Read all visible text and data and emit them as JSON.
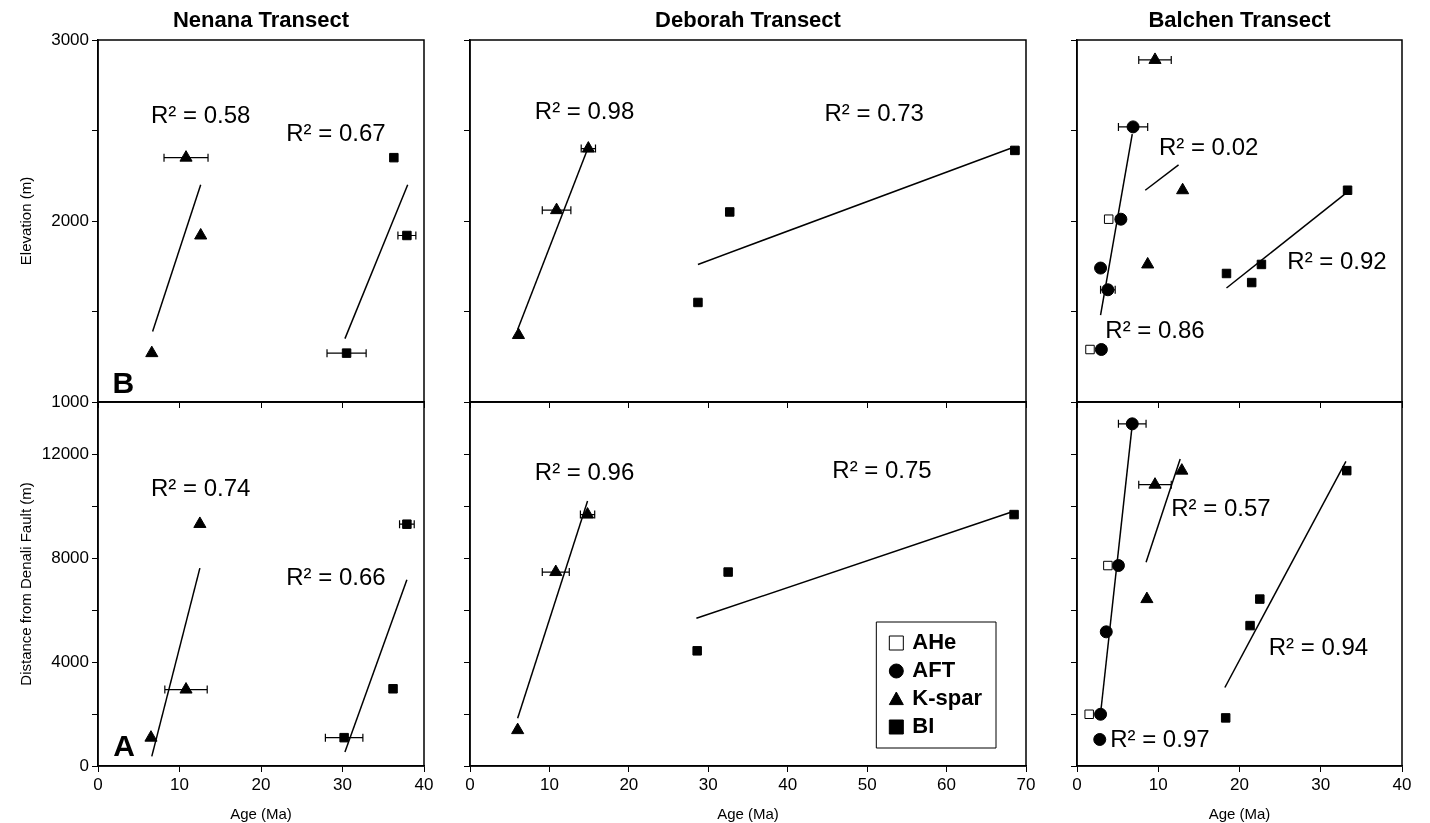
{
  "chart_data": [
    {
      "type": "scatter",
      "title": "Nenana Transect",
      "ylabel": "Elevation (m)",
      "xlim": [
        0,
        40
      ],
      "ylim": [
        1000,
        3000
      ],
      "xticks": [
        0,
        10,
        20,
        30,
        40
      ],
      "yticks": [
        1000,
        {
          "value": 1500,
          "label": null
        },
        2000,
        {
          "value": 2500,
          "label": null
        },
        3000
      ],
      "tick_labels": "y",
      "series": [
        {
          "type": "scatter",
          "marker": "triangle",
          "color": "#000000",
          "x": [
            6.6,
            10.8,
            12.6
          ],
          "values": [
            1270,
            2350,
            1920
          ],
          "xerrors": [
            null,
            2.7,
            null
          ]
        },
        {
          "type": "line",
          "color": "#000000",
          "x": [
            6.7,
            12.6
          ],
          "values": [
            1390,
            2200
          ]
        },
        {
          "type": "scatter",
          "marker": "square",
          "color": "#000000",
          "x": [
            30.5,
            36.3,
            37.9
          ],
          "values": [
            1270,
            2350,
            1920
          ],
          "xerrors": [
            2.4,
            null,
            1.1
          ]
        },
        {
          "type": "line",
          "color": "#000000",
          "x": [
            30.3,
            38.0
          ],
          "values": [
            1350,
            2200
          ]
        }
      ],
      "annotations": [
        "R² = 0.58",
        "R² = 0.67",
        "B"
      ]
    },
    {
      "type": "scatter",
      "title": "Deborah Transect",
      "xlim": [
        0,
        70
      ],
      "ylim": [
        1000,
        3000
      ],
      "xticks": [
        0,
        10,
        20,
        30,
        40,
        50,
        60,
        70
      ],
      "yticks": [
        1000,
        {
          "value": 1500,
          "label": null
        },
        2000,
        {
          "value": 2500,
          "label": null
        },
        3000
      ],
      "tick_labels": false,
      "series": [
        {
          "type": "scatter",
          "marker": "triangle",
          "color": "#000000",
          "x": [
            6.1,
            10.9,
            14.9
          ],
          "values": [
            1370,
            2060,
            2400
          ],
          "xerrors": [
            null,
            1.8,
            0.9
          ]
        },
        {
          "type": "line",
          "color": "#000000",
          "x": [
            6.0,
            15.0
          ],
          "values": [
            1400,
            2420
          ]
        },
        {
          "type": "scatter",
          "marker": "square",
          "color": "#000000",
          "x": [
            28.7,
            32.7,
            68.6
          ],
          "values": [
            1550,
            2050,
            2390
          ],
          "xerrors": [
            null,
            null,
            0.5
          ]
        },
        {
          "type": "line",
          "color": "#000000",
          "x": [
            28.7,
            68.6
          ],
          "values": [
            1760,
            2410
          ]
        }
      ],
      "annotations": [
        "R² = 0.98",
        "R² = 0.73"
      ]
    },
    {
      "type": "scatter",
      "title": "Balchen Transect",
      "xlim": [
        0,
        40
      ],
      "ylim": [
        1000,
        3000
      ],
      "xticks": [
        0,
        10,
        20,
        30,
        40
      ],
      "yticks": [
        1000,
        {
          "value": 1500,
          "label": null
        },
        2000,
        {
          "value": 2500,
          "label": null
        },
        3000
      ],
      "tick_labels": false,
      "series": [
        {
          "type": "scatter",
          "marker": "square",
          "color": "#ffffff",
          "x": [
            3.9,
            1.6
          ],
          "values": [
            2010,
            1290
          ]
        },
        {
          "type": "scatter",
          "marker": "circle",
          "color": "#000000",
          "x": [
            6.9,
            5.4,
            2.9,
            3.8,
            3.0
          ],
          "values": [
            2520,
            2010,
            1740,
            1620,
            1290
          ],
          "xerrors": [
            1.8,
            null,
            null,
            0.9,
            null
          ]
        },
        {
          "type": "line",
          "color": "#000000",
          "x": [
            2.9,
            6.8
          ],
          "values": [
            1480,
            2480
          ]
        },
        {
          "type": "scatter",
          "marker": "triangle",
          "color": "#000000",
          "x": [
            9.6,
            13.0,
            8.7
          ],
          "values": [
            2890,
            2170,
            1760
          ],
          "xerrors": [
            2.0,
            null,
            null
          ]
        },
        {
          "type": "line",
          "color": "#000000",
          "x": [
            8.4,
            12.5
          ],
          "values": [
            2170,
            2310
          ]
        },
        {
          "type": "scatter",
          "marker": "square",
          "color": "#000000",
          "x": [
            18.4,
            21.5,
            22.7,
            33.3
          ],
          "values": [
            1710,
            1660,
            1760,
            2170
          ]
        },
        {
          "type": "line",
          "color": "#000000",
          "x": [
            18.4,
            33.0
          ],
          "values": [
            1630,
            2150
          ]
        }
      ],
      "annotations": [
        "R² = 0.02",
        "R² = 0.92",
        "R² = 0.86"
      ]
    },
    {
      "type": "scatter",
      "xlabel": "Age (Ma)",
      "ylabel": "Distance from Denali Fault (m)",
      "xlim": [
        0,
        40
      ],
      "ylim": [
        0,
        14000
      ],
      "xticks": [
        0,
        10,
        20,
        30,
        40
      ],
      "yticks": [
        0,
        {
          "value": 2000,
          "label": null
        },
        4000,
        {
          "value": 6000,
          "label": null
        },
        8000,
        {
          "value": 10000,
          "label": null
        },
        12000
      ],
      "series": [
        {
          "type": "scatter",
          "marker": "triangle",
          "color": "#000000",
          "x": [
            6.5,
            10.8,
            12.5
          ],
          "values": [
            1090,
            2940,
            9310
          ],
          "xerrors": [
            null,
            2.6,
            null
          ]
        },
        {
          "type": "line",
          "color": "#000000",
          "x": [
            6.6,
            12.5
          ],
          "values": [
            370,
            7610
          ]
        },
        {
          "type": "scatter",
          "marker": "square",
          "color": "#000000",
          "x": [
            30.2,
            36.2,
            37.9
          ],
          "values": [
            1090,
            2970,
            9300
          ],
          "xerrors": [
            2.3,
            null,
            0.9
          ]
        },
        {
          "type": "line",
          "color": "#000000",
          "x": [
            30.3,
            37.9
          ],
          "values": [
            540,
            7160
          ]
        }
      ],
      "annotations": [
        "R² = 0.74",
        "R² = 0.66",
        "A"
      ]
    },
    {
      "type": "scatter",
      "xlabel": "Age (Ma)",
      "xlim": [
        0,
        70
      ],
      "ylim": [
        0,
        14000
      ],
      "xticks": [
        0,
        10,
        20,
        30,
        40,
        50,
        60,
        70
      ],
      "yticks": [
        0,
        {
          "value": 2000,
          "label": null
        },
        {
          "value": 4000,
          "label": null
        },
        {
          "value": 6000,
          "label": null
        },
        {
          "value": 8000,
          "label": null
        },
        {
          "value": 10000,
          "label": null
        },
        {
          "value": 12000,
          "label": null
        }
      ],
      "tick_labels": "x",
      "legend": "bottom right",
      "series": [
        {
          "name": "AHe",
          "type": "scatter",
          "marker": "square",
          "color": "#ffffff"
        },
        {
          "name": "AFT",
          "type": "scatter",
          "marker": "circle",
          "color": "#000000"
        },
        {
          "name": "K-spar",
          "type": "scatter",
          "marker": "triangle",
          "color": "#000000",
          "x": [
            6.0,
            10.8,
            14.8
          ],
          "values": [
            1380,
            7460,
            9670
          ],
          "xerrors": [
            null,
            1.7,
            0.9
          ]
        },
        {
          "type": "line",
          "color": "#000000",
          "x": [
            6.0,
            14.8
          ],
          "values": [
            1840,
            10190
          ]
        },
        {
          "name": "BI",
          "type": "scatter",
          "marker": "square",
          "color": "#000000",
          "x": [
            28.6,
            32.5,
            68.5
          ],
          "values": [
            4430,
            7460,
            9670
          ]
        },
        {
          "type": "line",
          "color": "#000000",
          "x": [
            28.5,
            68.0
          ],
          "values": [
            5680,
            9750
          ]
        }
      ],
      "annotations": [
        "R² = 0.96",
        "R² = 0.75"
      ]
    },
    {
      "type": "scatter",
      "xlabel": "Age (Ma)",
      "xlim": [
        0,
        40
      ],
      "ylim": [
        0,
        14000
      ],
      "xticks": [
        0,
        10,
        20,
        30,
        40
      ],
      "yticks": [
        0,
        {
          "value": 2000,
          "label": null
        },
        {
          "value": 4000,
          "label": null
        },
        {
          "value": 6000,
          "label": null
        },
        {
          "value": 8000,
          "label": null
        },
        {
          "value": 10000,
          "label": null
        },
        {
          "value": 12000,
          "label": null
        }
      ],
      "tick_labels": "x",
      "series": [
        {
          "type": "scatter",
          "marker": "square",
          "color": "#ffffff",
          "x": [
            3.8,
            1.5
          ],
          "values": [
            7710,
            1990
          ]
        },
        {
          "type": "scatter",
          "marker": "circle",
          "color": "#000000",
          "x": [
            6.8,
            5.1,
            3.6,
            2.9,
            2.8
          ],
          "values": [
            13160,
            7710,
            5160,
            1990,
            1020
          ],
          "xerrors": [
            1.7,
            null,
            null,
            null,
            null
          ]
        },
        {
          "type": "line",
          "color": "#000000",
          "x": [
            2.9,
            6.8
          ],
          "values": [
            2020,
            13130
          ]
        },
        {
          "type": "scatter",
          "marker": "triangle",
          "color": "#000000",
          "x": [
            12.9,
            9.6,
            8.6
          ],
          "values": [
            11360,
            10820,
            6420
          ],
          "xerrors": [
            null,
            2.0,
            null
          ]
        },
        {
          "type": "line",
          "color": "#000000",
          "x": [
            8.5,
            12.7
          ],
          "values": [
            7840,
            11810
          ]
        },
        {
          "type": "scatter",
          "marker": "square",
          "color": "#000000",
          "x": [
            18.3,
            21.3,
            22.5,
            33.2
          ],
          "values": [
            1850,
            5400,
            6420,
            11360
          ]
        },
        {
          "type": "line",
          "color": "#000000",
          "x": [
            18.2,
            33.1
          ],
          "values": [
            3020,
            11720
          ]
        }
      ],
      "annotations": [
        "R² = 0.57",
        "R² = 0.94",
        "R² = 0.97"
      ]
    }
  ]
}
